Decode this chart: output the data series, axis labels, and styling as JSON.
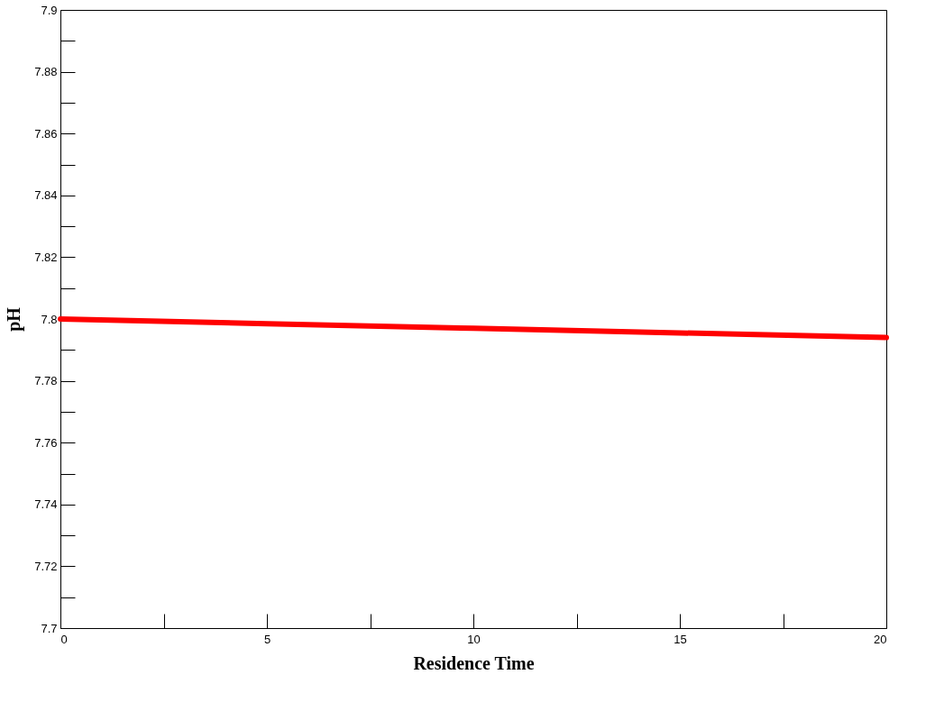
{
  "chart_data": {
    "type": "line",
    "xlabel": "Residence Time",
    "ylabel": "pH",
    "x": [
      0,
      5,
      10,
      15,
      20
    ],
    "series": [
      {
        "color": "#ff0000",
        "values": [
          7.8,
          7.7985,
          7.797,
          7.7955,
          7.794
        ]
      }
    ],
    "xlim": [
      0,
      20
    ],
    "xticks": [
      0,
      {
        "value": 2.5,
        "label": null
      },
      5,
      {
        "value": 7.5,
        "label": null
      },
      10,
      {
        "value": 12.5,
        "label": null
      },
      15,
      {
        "value": 17.5,
        "label": null
      },
      20
    ],
    "ylim": [
      7.7,
      7.9
    ],
    "yticks": [
      7.7,
      {
        "value": 7.71,
        "label": null
      },
      7.72,
      {
        "value": 7.73,
        "label": null
      },
      7.74,
      {
        "value": 7.75,
        "label": null
      },
      7.76,
      {
        "value": 7.77,
        "label": null
      },
      7.78,
      {
        "value": 7.79,
        "label": null
      },
      7.8,
      {
        "value": 7.81,
        "label": null
      },
      7.82,
      {
        "value": 7.83,
        "label": null
      },
      7.84,
      {
        "value": 7.85,
        "label": null
      },
      7.86,
      {
        "value": 7.87,
        "label": null
      },
      7.88,
      {
        "value": 7.89,
        "label": null
      },
      7.9
    ],
    "grid": false,
    "line_style": "solid",
    "marker": "none"
  }
}
